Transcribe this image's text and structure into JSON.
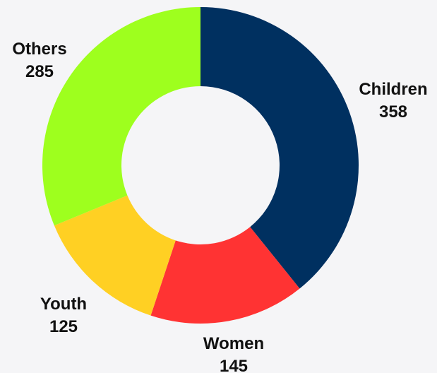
{
  "chart_data": {
    "type": "pie",
    "variant": "donut",
    "categories": [
      "Children",
      "Women",
      "Youth",
      "Others"
    ],
    "values": [
      358,
      145,
      125,
      285
    ],
    "colors": [
      "#003060",
      "#ff3333",
      "#ffd023",
      "#9eff1e"
    ],
    "start_angle_deg": 0,
    "direction": "clockwise",
    "title": "",
    "legend": "none",
    "labels_show": [
      "name",
      "value"
    ]
  }
}
